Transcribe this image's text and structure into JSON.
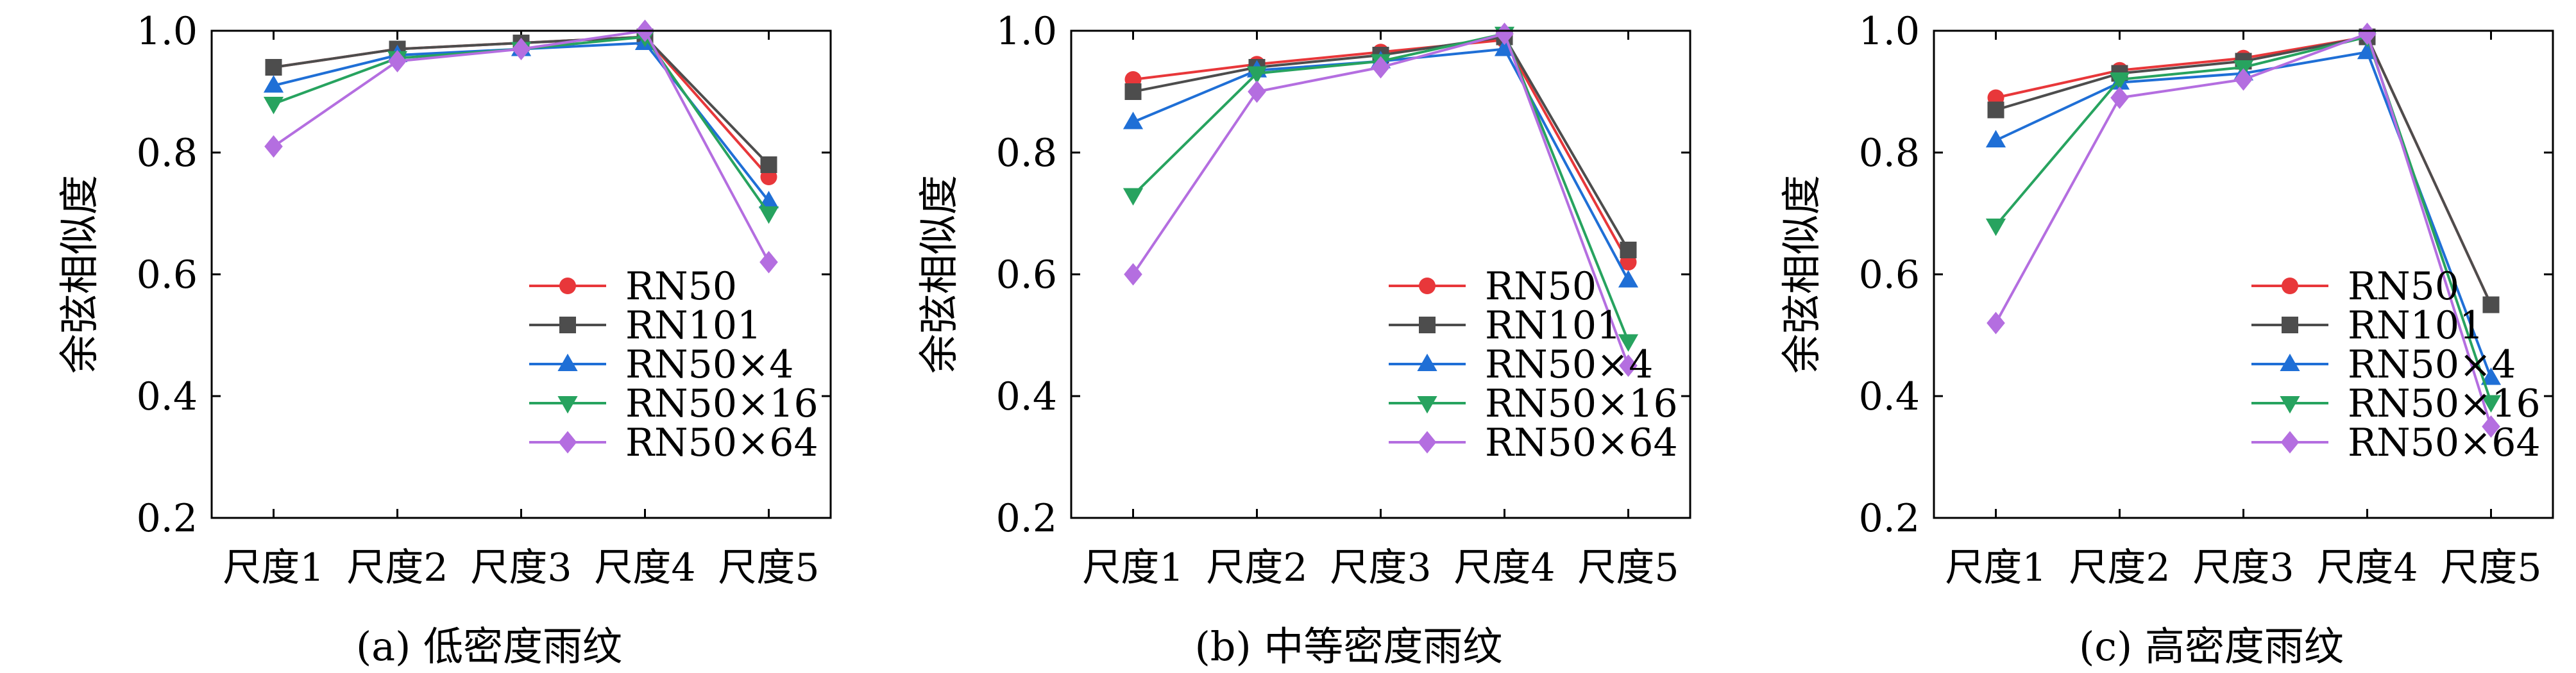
{
  "chart_data": [
    {
      "type": "line",
      "caption": "(a) 低密度雨纹",
      "ylabel": "余弦相似度",
      "categories": [
        "尺度1",
        "尺度2",
        "尺度3",
        "尺度4",
        "尺度5"
      ],
      "ylim": [
        0.2,
        1.0
      ],
      "yticks": [
        "0.2",
        "0.4",
        "0.6",
        "0.8",
        "1.0"
      ],
      "legend_position": "bottom-right",
      "series": [
        {
          "name": "RN50",
          "color": "#e8373a",
          "marker": "circle",
          "values": [
            0.94,
            0.97,
            0.98,
            0.99,
            0.76
          ]
        },
        {
          "name": "RN101",
          "color": "#4d4d4d",
          "marker": "square",
          "values": [
            0.94,
            0.97,
            0.98,
            0.99,
            0.78
          ]
        },
        {
          "name": "RN50×4",
          "color": "#1f6fd6",
          "marker": "triangle-up",
          "values": [
            0.91,
            0.96,
            0.97,
            0.98,
            0.72
          ]
        },
        {
          "name": "RN50×16",
          "color": "#27a35f",
          "marker": "triangle-down",
          "values": [
            0.88,
            0.955,
            0.97,
            0.99,
            0.7
          ]
        },
        {
          "name": "RN50×64",
          "color": "#b46ee0",
          "marker": "diamond",
          "values": [
            0.81,
            0.95,
            0.97,
            1.0,
            0.62
          ]
        }
      ]
    },
    {
      "type": "line",
      "caption": "(b) 中等密度雨纹",
      "ylabel": "余弦相似度",
      "categories": [
        "尺度1",
        "尺度2",
        "尺度3",
        "尺度4",
        "尺度5"
      ],
      "ylim": [
        0.2,
        1.0
      ],
      "yticks": [
        "0.2",
        "0.4",
        "0.6",
        "0.8",
        "1.0"
      ],
      "legend_position": "bottom-right",
      "series": [
        {
          "name": "RN50",
          "color": "#e8373a",
          "marker": "circle",
          "values": [
            0.92,
            0.945,
            0.965,
            0.985,
            0.62
          ]
        },
        {
          "name": "RN101",
          "color": "#4d4d4d",
          "marker": "square",
          "values": [
            0.9,
            0.94,
            0.96,
            0.99,
            0.64
          ]
        },
        {
          "name": "RN50×4",
          "color": "#1f6fd6",
          "marker": "triangle-up",
          "values": [
            0.85,
            0.935,
            0.95,
            0.97,
            0.59
          ]
        },
        {
          "name": "RN50×16",
          "color": "#27a35f",
          "marker": "triangle-down",
          "values": [
            0.73,
            0.93,
            0.95,
            0.995,
            0.49
          ]
        },
        {
          "name": "RN50×64",
          "color": "#b46ee0",
          "marker": "diamond",
          "values": [
            0.6,
            0.9,
            0.94,
            0.995,
            0.45
          ]
        }
      ]
    },
    {
      "type": "line",
      "caption": "(c) 高密度雨纹",
      "ylabel": "余弦相似度",
      "categories": [
        "尺度1",
        "尺度2",
        "尺度3",
        "尺度4",
        "尺度5"
      ],
      "ylim": [
        0.2,
        1.0
      ],
      "yticks": [
        "0.2",
        "0.4",
        "0.6",
        "0.8",
        "1.0"
      ],
      "legend_position": "bottom-right",
      "series": [
        {
          "name": "RN50",
          "color": "#e8373a",
          "marker": "circle",
          "values": [
            0.89,
            0.935,
            0.955,
            0.99,
            0.55
          ]
        },
        {
          "name": "RN101",
          "color": "#4d4d4d",
          "marker": "square",
          "values": [
            0.87,
            0.93,
            0.95,
            0.99,
            0.55
          ]
        },
        {
          "name": "RN50×4",
          "color": "#1f6fd6",
          "marker": "triangle-up",
          "values": [
            0.82,
            0.915,
            0.93,
            0.965,
            0.43
          ]
        },
        {
          "name": "RN50×16",
          "color": "#27a35f",
          "marker": "triangle-down",
          "values": [
            0.68,
            0.92,
            0.94,
            0.99,
            0.39
          ]
        },
        {
          "name": "RN50×64",
          "color": "#b46ee0",
          "marker": "diamond",
          "values": [
            0.52,
            0.89,
            0.92,
            0.995,
            0.35
          ]
        }
      ]
    }
  ]
}
